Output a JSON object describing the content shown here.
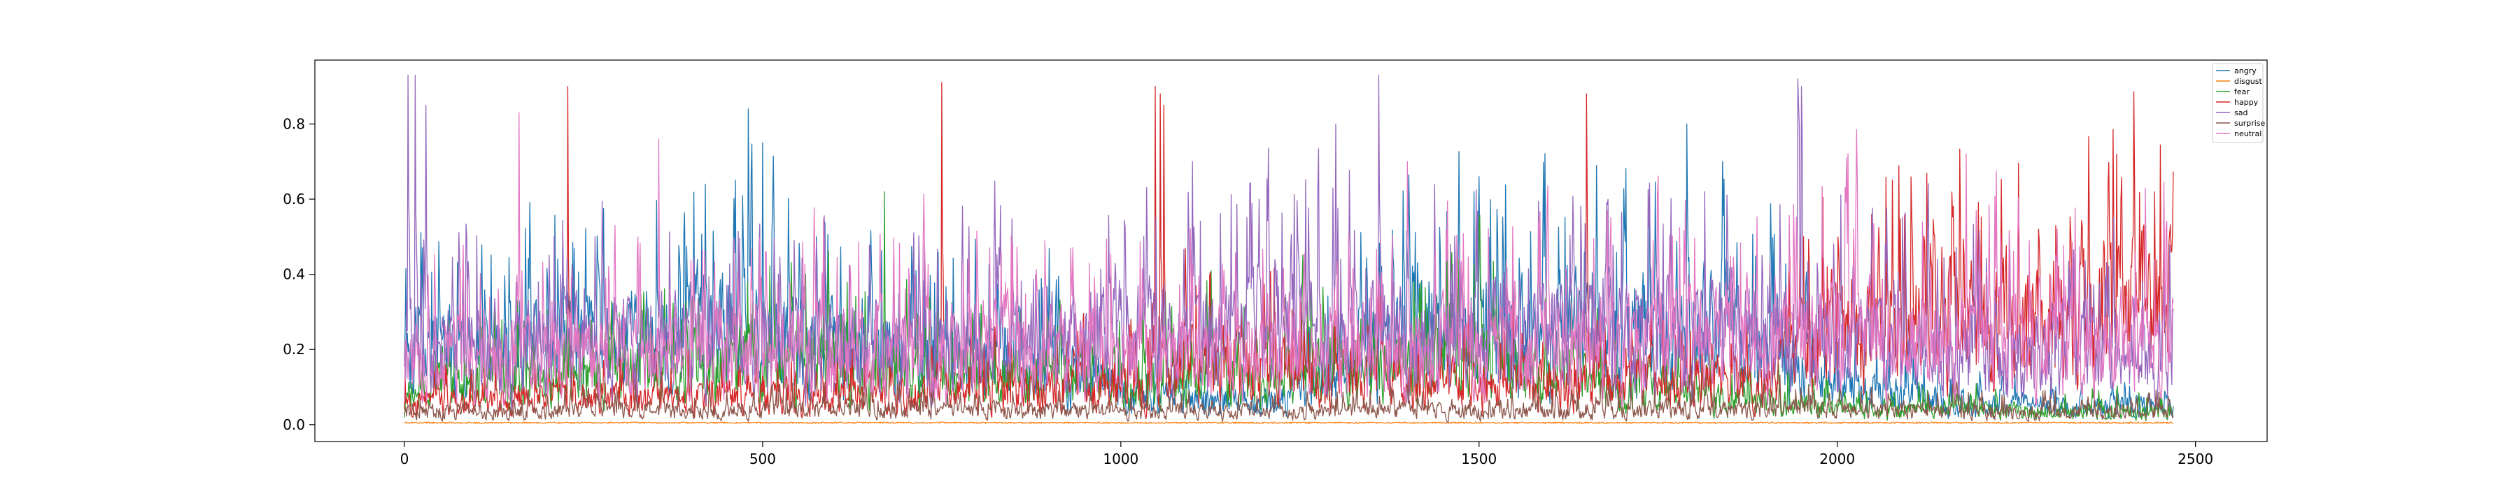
{
  "chart_data": {
    "type": "line",
    "title": "",
    "xlabel": "",
    "ylabel": "",
    "xlim": [
      -125,
      2600
    ],
    "ylim": [
      -0.045,
      0.97
    ],
    "x_ticks": [
      0,
      500,
      1000,
      1500,
      2000,
      2500
    ],
    "x_tick_labels": [
      "0",
      "500",
      "1000",
      "1500",
      "2000",
      "2500"
    ],
    "y_ticks": [
      0.0,
      0.2,
      0.4,
      0.6,
      0.8
    ],
    "y_tick_labels": [
      "0.0",
      "0.2",
      "0.4",
      "0.6",
      "0.8"
    ],
    "n_points": 2470,
    "legend_position": "top-right",
    "grid": false,
    "series": [
      {
        "name": "angry",
        "color": "#1f77b4",
        "profile": [
          [
            0,
            0.22
          ],
          [
            300,
            0.26
          ],
          [
            420,
            0.3
          ],
          [
            500,
            0.28
          ],
          [
            700,
            0.2
          ],
          [
            850,
            0.26
          ],
          [
            1000,
            0.1
          ],
          [
            1200,
            0.07
          ],
          [
            1400,
            0.28
          ],
          [
            1700,
            0.3
          ],
          [
            1850,
            0.32
          ],
          [
            2000,
            0.12
          ],
          [
            2200,
            0.06
          ],
          [
            2470,
            0.06
          ]
        ],
        "peaks": [
          [
            480,
            0.84
          ],
          [
            500,
            0.75
          ],
          [
            420,
            0.64
          ],
          [
            1500,
            0.66
          ],
          [
            1790,
            0.8
          ],
          [
            1840,
            0.7
          ]
        ]
      },
      {
        "name": "disgust",
        "color": "#ff7f0e",
        "profile": [
          [
            0,
            0.005
          ],
          [
            2470,
            0.005
          ]
        ],
        "peaks": []
      },
      {
        "name": "fear",
        "color": "#2ca02c",
        "profile": [
          [
            0,
            0.12
          ],
          [
            300,
            0.16
          ],
          [
            500,
            0.2
          ],
          [
            700,
            0.16
          ],
          [
            1000,
            0.14
          ],
          [
            1200,
            0.16
          ],
          [
            1500,
            0.2
          ],
          [
            1700,
            0.12
          ],
          [
            2000,
            0.05
          ],
          [
            2470,
            0.04
          ]
        ],
        "peaks": [
          [
            670,
            0.62
          ],
          [
            1500,
            0.52
          ],
          [
            560,
            0.4
          ]
        ]
      },
      {
        "name": "happy",
        "color": "#d62728",
        "profile": [
          [
            0,
            0.07
          ],
          [
            500,
            0.09
          ],
          [
            1000,
            0.12
          ],
          [
            1100,
            0.2
          ],
          [
            1500,
            0.12
          ],
          [
            1900,
            0.14
          ],
          [
            2000,
            0.3
          ],
          [
            2300,
            0.34
          ],
          [
            2470,
            0.38
          ]
        ],
        "peaks": [
          [
            228,
            0.9
          ],
          [
            750,
            0.91
          ],
          [
            1048,
            0.9
          ],
          [
            1055,
            0.88
          ],
          [
            1060,
            0.85
          ],
          [
            1650,
            0.88
          ],
          [
            2390,
            0.72
          ]
        ]
      },
      {
        "name": "sad",
        "color": "#9467bd",
        "profile": [
          [
            0,
            0.24
          ],
          [
            300,
            0.26
          ],
          [
            600,
            0.24
          ],
          [
            900,
            0.26
          ],
          [
            1200,
            0.3
          ],
          [
            1500,
            0.27
          ],
          [
            1800,
            0.3
          ],
          [
            2000,
            0.26
          ],
          [
            2470,
            0.22
          ]
        ],
        "peaks": [
          [
            5,
            0.93
          ],
          [
            15,
            0.93
          ],
          [
            30,
            0.85
          ],
          [
            1360,
            0.93
          ],
          [
            1945,
            0.92
          ],
          [
            1950,
            0.9
          ],
          [
            1300,
            0.8
          ],
          [
            1100,
            0.7
          ]
        ]
      },
      {
        "name": "surprise",
        "color": "#8c564b",
        "profile": [
          [
            0,
            0.04
          ],
          [
            600,
            0.05
          ],
          [
            1200,
            0.04
          ],
          [
            1800,
            0.05
          ],
          [
            2470,
            0.04
          ]
        ],
        "peaks": []
      },
      {
        "name": "neutral",
        "color": "#e377c2",
        "profile": [
          [
            0,
            0.2
          ],
          [
            400,
            0.22
          ],
          [
            800,
            0.24
          ],
          [
            1200,
            0.22
          ],
          [
            1600,
            0.24
          ],
          [
            2000,
            0.28
          ],
          [
            2470,
            0.26
          ]
        ],
        "peaks": [
          [
            160,
            0.83
          ],
          [
            355,
            0.76
          ],
          [
            2180,
            0.72
          ],
          [
            1400,
            0.7
          ]
        ]
      }
    ]
  }
}
